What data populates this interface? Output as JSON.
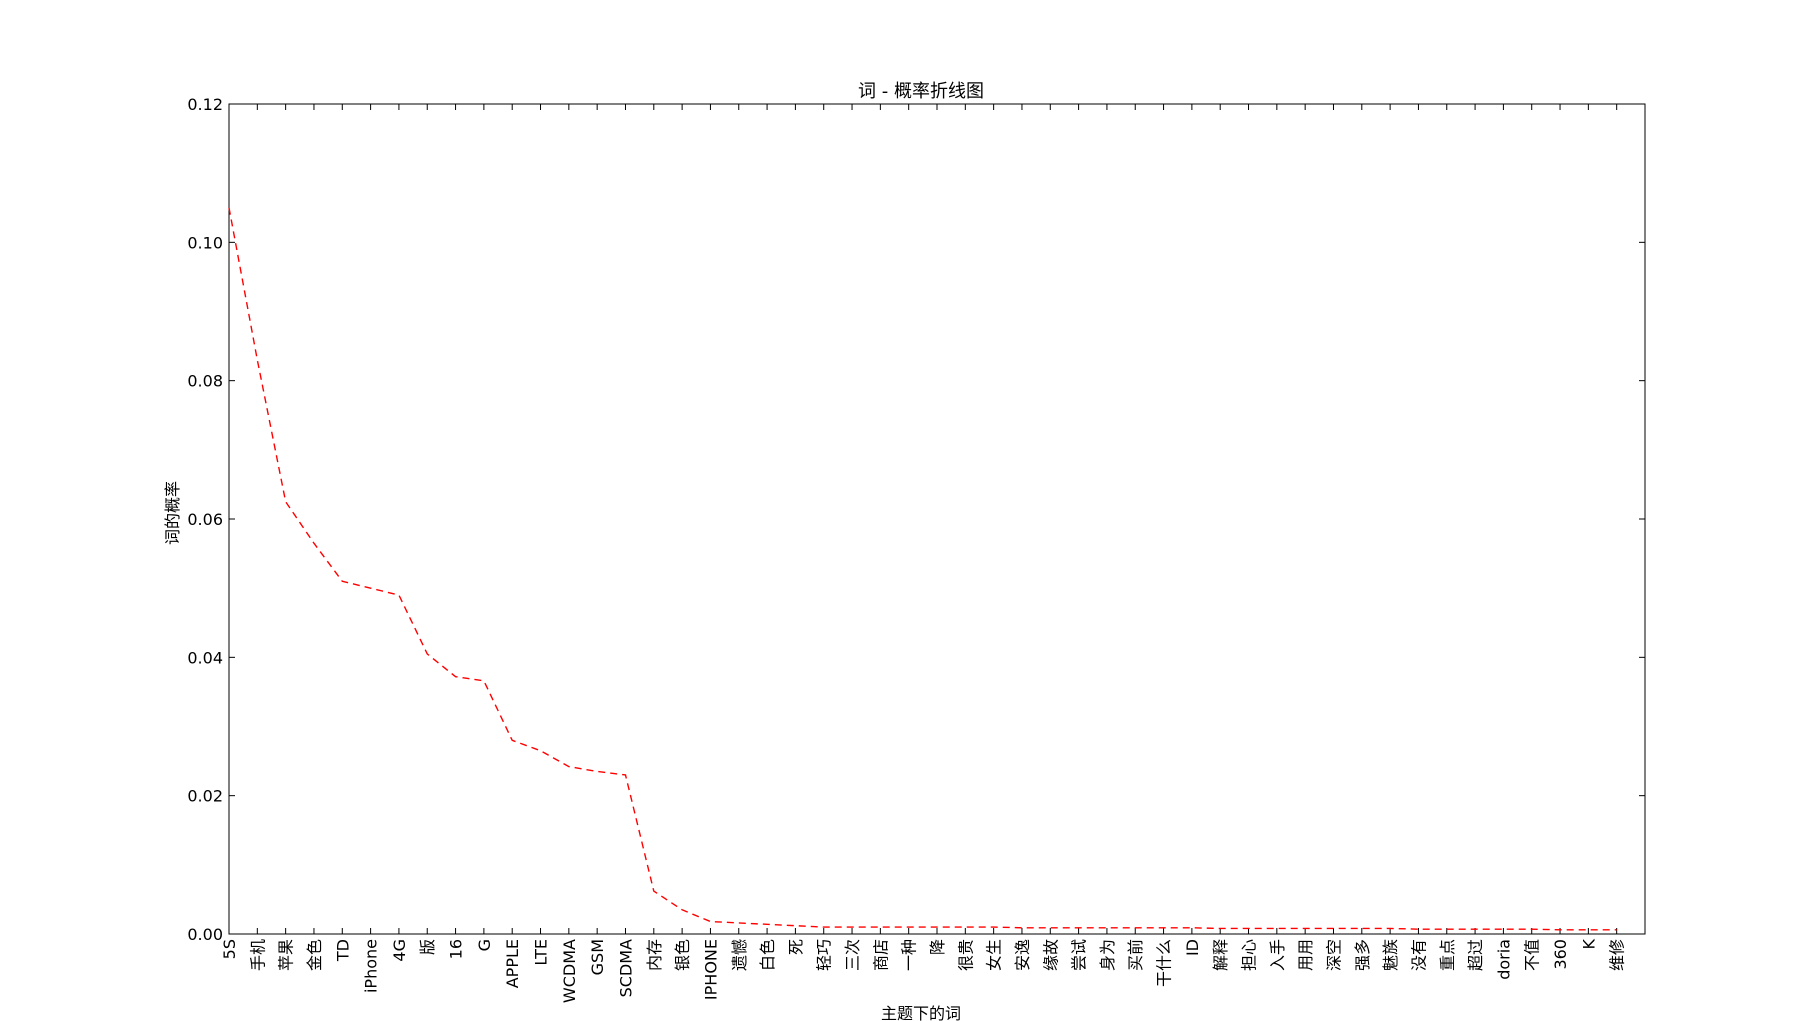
{
  "chart_data": {
    "type": "line",
    "title": "词 - 概率折线图",
    "xlabel": "主题下的词",
    "ylabel": "词的概率",
    "ylim": [
      0.0,
      0.12
    ],
    "yticks": [
      "0.00",
      "0.02",
      "0.04",
      "0.06",
      "0.08",
      "0.10",
      "0.12"
    ],
    "grid": false,
    "legend": "none",
    "line_style": "dashed",
    "line_color": "#ff0000",
    "categories": [
      "5S",
      "手机",
      "苹果",
      "金色",
      "TD",
      "iPhone",
      "4G",
      "版",
      "16",
      "G",
      "APPLE",
      "LTE",
      "WCDMA",
      "GSM",
      "SCDMA",
      "内存",
      "银色",
      "IPHONE",
      "遗憾",
      "白色",
      "死",
      "轻巧",
      "三次",
      "商店",
      "一种",
      "降",
      "很贵",
      "女生",
      "安逸",
      "缘故",
      "尝试",
      "身为",
      "买前",
      "干什么",
      "ID",
      "解释",
      "担心",
      "入手",
      "用用",
      "深空",
      "强多",
      "魅族",
      "没有",
      "重点",
      "超过",
      "doria",
      "不值",
      "360",
      "K",
      "维修"
    ],
    "series": [
      {
        "values": [
          0.105,
          0.083,
          0.0625,
          0.0565,
          0.051,
          0.05,
          0.049,
          0.0405,
          0.0372,
          0.0366,
          0.028,
          0.0265,
          0.0242,
          0.0235,
          0.023,
          0.0062,
          0.0035,
          0.0018,
          0.0016,
          0.0014,
          0.0012,
          0.001,
          0.001,
          0.001,
          0.001,
          0.001,
          0.001,
          0.001,
          0.0009,
          0.0009,
          0.0009,
          0.0009,
          0.0009,
          0.0009,
          0.0009,
          0.0008,
          0.0008,
          0.0008,
          0.0008,
          0.0008,
          0.0008,
          0.0008,
          0.0007,
          0.0007,
          0.0007,
          0.0007,
          0.0007,
          0.0006,
          0.0006,
          0.0006
        ]
      }
    ]
  }
}
